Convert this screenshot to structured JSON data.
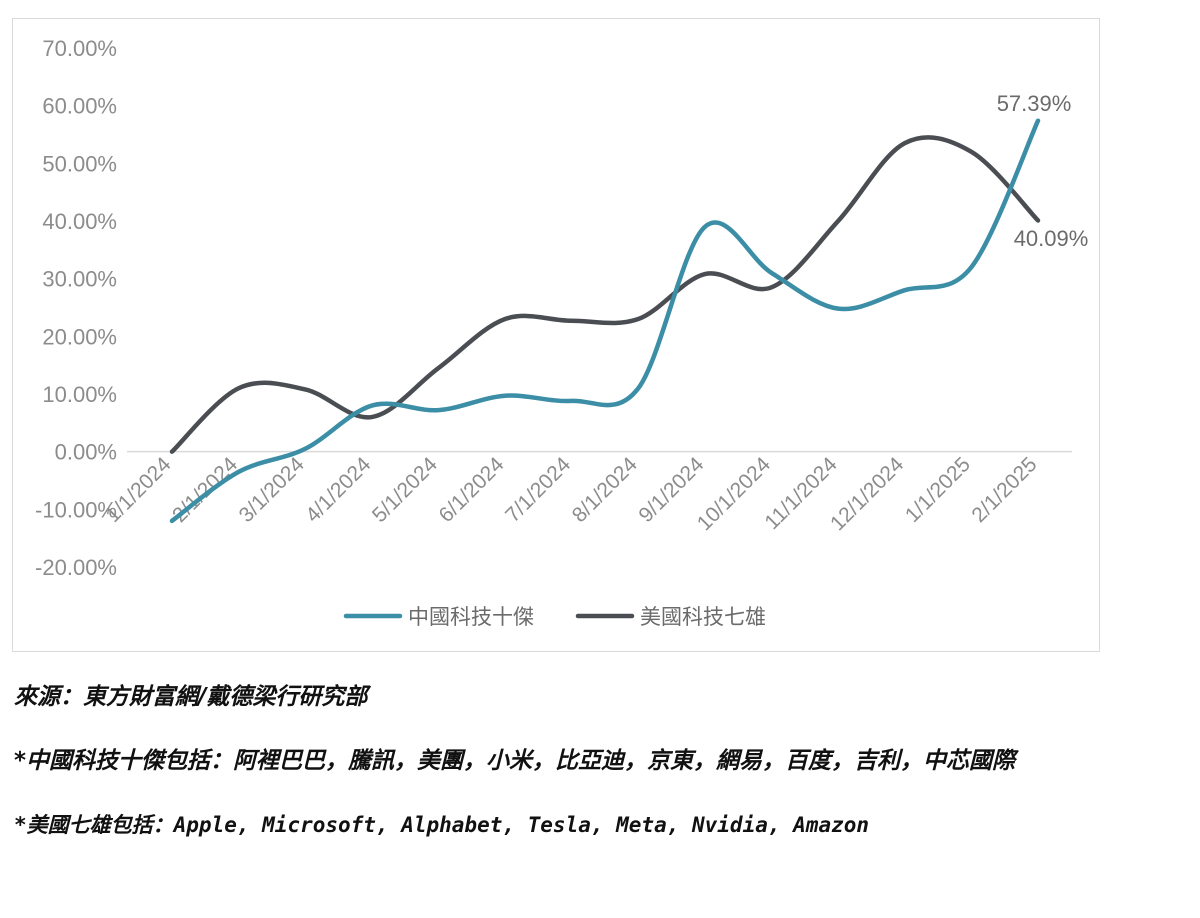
{
  "chart_data": {
    "type": "line",
    "categories": [
      "1/1/2024",
      "2/1/2024",
      "3/1/2024",
      "4/1/2024",
      "5/1/2024",
      "6/1/2024",
      "7/1/2024",
      "8/1/2024",
      "9/1/2024",
      "10/1/2024",
      "11/1/2024",
      "12/1/2024",
      "1/1/2025",
      "2/1/2025"
    ],
    "series": [
      {
        "name": "中國科技十傑",
        "color": "#3b8ea5",
        "values": [
          -12.0,
          -3.5,
          0.5,
          8.0,
          7.2,
          9.7,
          8.8,
          11.0,
          39.0,
          31.0,
          24.8,
          28.0,
          32.0,
          57.39
        ],
        "end_label": "57.39%"
      },
      {
        "name": "美國科技七雄",
        "color": "#4a4d52",
        "values": [
          0.0,
          11.0,
          10.8,
          6.0,
          14.5,
          23.0,
          22.7,
          23.0,
          30.8,
          28.5,
          40.0,
          53.5,
          52.0,
          40.09
        ],
        "end_label": "40.09%"
      }
    ],
    "y_ticks": [
      "70.00%",
      "60.00%",
      "50.00%",
      "40.00%",
      "30.00%",
      "20.00%",
      "10.00%",
      "0.00%",
      "-10.00%",
      "-20.00%"
    ],
    "ylim": [
      -20,
      70
    ],
    "grid": false,
    "legend_position": "bottom"
  },
  "notes": {
    "source": "來源：東方財富網/戴德梁行研究部",
    "china_members": "*中國科技十傑包括：阿裡巴巴，騰訊，美團，小米，比亞迪，京東，網易，百度，吉利，中芯國際",
    "us_members": "*美國七雄包括：Apple, Microsoft, Alphabet, Tesla, Meta, Nvidia, Amazon"
  }
}
